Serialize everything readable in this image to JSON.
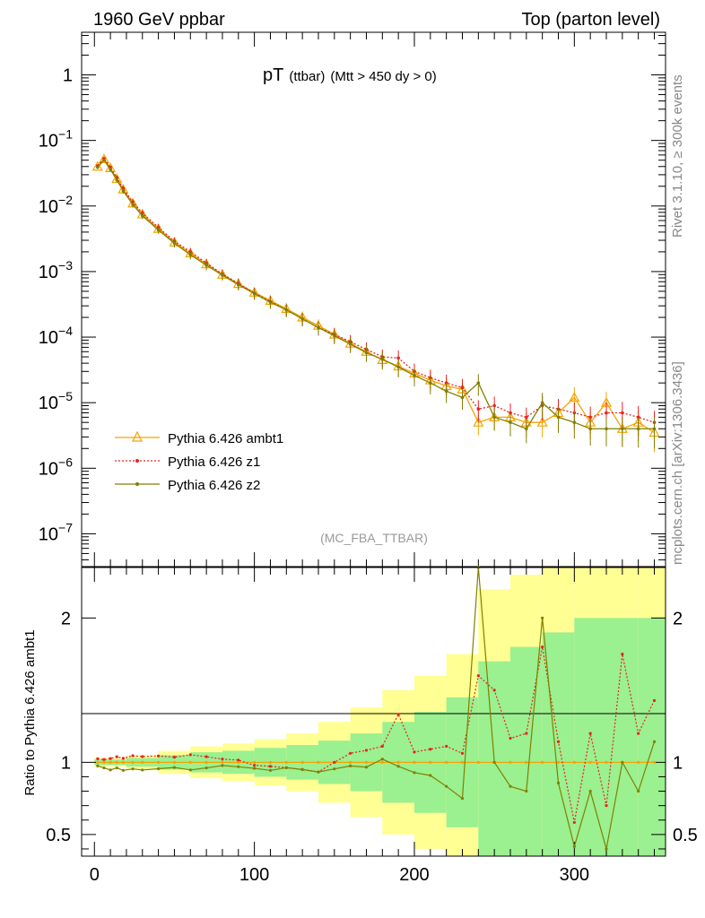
{
  "header": {
    "left": "1960 GeV ppbar",
    "right": "Top (parton level)"
  },
  "side": {
    "rivet": "Rivet 3.1.10, ≥ 300k events",
    "mcplots": "mcplots.cern.ch [arXiv:1306.3436]"
  },
  "chart_data": {
    "type": "line",
    "title": "pT",
    "title_sub": "(ttbar)",
    "title_cut": "(Mtt > 450 dy > 0)",
    "analysis_label": "(MC_FBA_TTBAR)",
    "xlim": [
      -8,
      357
    ],
    "x_ticks": [
      "0",
      "100",
      "200",
      "300"
    ],
    "main": {
      "yscale": "log",
      "ylim_exp": [
        -7.5,
        0.65
      ],
      "y_ticks": [
        {
          "mant": "1",
          "exp": ""
        },
        {
          "mant": "10",
          "exp": "−1"
        },
        {
          "mant": "10",
          "exp": "−2"
        },
        {
          "mant": "10",
          "exp": "−3"
        },
        {
          "mant": "10",
          "exp": "−4"
        },
        {
          "mant": "10",
          "exp": "−5"
        },
        {
          "mant": "10",
          "exp": "−6"
        },
        {
          "mant": "10",
          "exp": "−7"
        }
      ]
    },
    "ratio": {
      "ylabel": "Ratio to Pythia 6.426 ambt1",
      "ylim": [
        0.35,
        2.35
      ],
      "y_ticks": [
        "0.5",
        "1",
        "2"
      ],
      "band_bins": [
        {
          "x": 0,
          "g": 0.02,
          "y": 0.03
        },
        {
          "x": 20,
          "g": 0.03,
          "y": 0.05
        },
        {
          "x": 40,
          "g": 0.05,
          "y": 0.08
        },
        {
          "x": 60,
          "g": 0.07,
          "y": 0.11
        },
        {
          "x": 80,
          "g": 0.08,
          "y": 0.13
        },
        {
          "x": 100,
          "g": 0.1,
          "y": 0.16
        },
        {
          "x": 120,
          "g": 0.12,
          "y": 0.2
        },
        {
          "x": 140,
          "g": 0.15,
          "y": 0.28
        },
        {
          "x": 160,
          "g": 0.2,
          "y": 0.38
        },
        {
          "x": 180,
          "g": 0.28,
          "y": 0.5
        },
        {
          "x": 200,
          "g": 0.35,
          "y": 0.6
        },
        {
          "x": 220,
          "g": 0.45,
          "y": 0.75
        },
        {
          "x": 240,
          "g": 0.7,
          "y": 1.2
        },
        {
          "x": 260,
          "g": 0.8,
          "y": 1.3
        },
        {
          "x": 280,
          "g": 0.9,
          "y": 1.4
        },
        {
          "x": 300,
          "g": 1.0,
          "y": 1.4
        },
        {
          "x": 320,
          "g": 1.0,
          "y": 1.4
        },
        {
          "x": 340,
          "g": 1.0,
          "y": 1.4
        }
      ]
    },
    "series": [
      {
        "name": "Pythia 6.426 ambt1",
        "color": "#f5a300",
        "marker": "triangle",
        "dash": "",
        "x": [
          2,
          6,
          10,
          14,
          18,
          24,
          30,
          40,
          50,
          60,
          70,
          80,
          90,
          100,
          110,
          120,
          130,
          140,
          150,
          160,
          170,
          180,
          190,
          200,
          210,
          220,
          230,
          240,
          250,
          260,
          270,
          280,
          290,
          300,
          310,
          320,
          330,
          340,
          350
        ],
        "y": [
          0.04,
          0.052,
          0.038,
          0.026,
          0.018,
          0.011,
          0.0075,
          0.0045,
          0.0028,
          0.0019,
          0.0013,
          0.0009,
          0.00065,
          0.00048,
          0.00036,
          0.00027,
          0.0002,
          0.00015,
          0.00011,
          8e-05,
          6e-05,
          4.5e-05,
          3.6e-05,
          2.8e-05,
          2.2e-05,
          1.8e-05,
          1.6e-05,
          5e-06,
          6e-06,
          6e-06,
          5e-06,
          5e-06,
          7e-06,
          1.2e-05,
          5e-06,
          1e-05,
          4e-06,
          5e-06,
          3.5e-06
        ]
      },
      {
        "name": "Pythia 6.426 z1",
        "color": "#e8231f",
        "marker": "dot",
        "dash": "2,2",
        "x": [
          2,
          6,
          10,
          14,
          18,
          24,
          30,
          40,
          50,
          60,
          70,
          80,
          90,
          100,
          110,
          120,
          130,
          140,
          150,
          160,
          170,
          180,
          190,
          200,
          210,
          220,
          230,
          240,
          250,
          260,
          270,
          280,
          290,
          300,
          310,
          320,
          330,
          340,
          350
        ],
        "y": [
          0.041,
          0.053,
          0.039,
          0.027,
          0.0185,
          0.0115,
          0.0078,
          0.0047,
          0.0029,
          0.002,
          0.00135,
          0.00092,
          0.00066,
          0.00047,
          0.00035,
          0.00026,
          0.00019,
          0.00014,
          0.00011,
          8.5e-05,
          6.5e-05,
          5e-05,
          4.8e-05,
          3e-05,
          2.4e-05,
          2e-05,
          1.7e-05,
          8e-06,
          9e-06,
          7e-06,
          6e-06,
          9e-06,
          8e-06,
          7e-06,
          6e-06,
          7e-06,
          7e-06,
          6e-06,
          5e-06
        ]
      },
      {
        "name": "Pythia 6.426 z2",
        "color": "#808000",
        "marker": "dot",
        "dash": "",
        "x": [
          2,
          6,
          10,
          14,
          18,
          24,
          30,
          40,
          50,
          60,
          70,
          80,
          90,
          100,
          110,
          120,
          130,
          140,
          150,
          160,
          170,
          180,
          190,
          200,
          210,
          220,
          230,
          240,
          250,
          260,
          270,
          280,
          290,
          300,
          310,
          320,
          330,
          340,
          350
        ],
        "y": [
          0.039,
          0.05,
          0.036,
          0.025,
          0.017,
          0.0105,
          0.0071,
          0.0043,
          0.0027,
          0.0018,
          0.00125,
          0.00088,
          0.00063,
          0.00046,
          0.00034,
          0.00026,
          0.00019,
          0.00014,
          0.000105,
          7.8e-05,
          5.8e-05,
          4.6e-05,
          3.5e-05,
          2.6e-05,
          2e-05,
          1.5e-05,
          1.2e-05,
          2e-05,
          6e-06,
          5e-06,
          4e-06,
          1e-05,
          6e-06,
          5e-06,
          4e-06,
          4e-06,
          4e-06,
          4e-06,
          4e-06
        ]
      }
    ]
  }
}
